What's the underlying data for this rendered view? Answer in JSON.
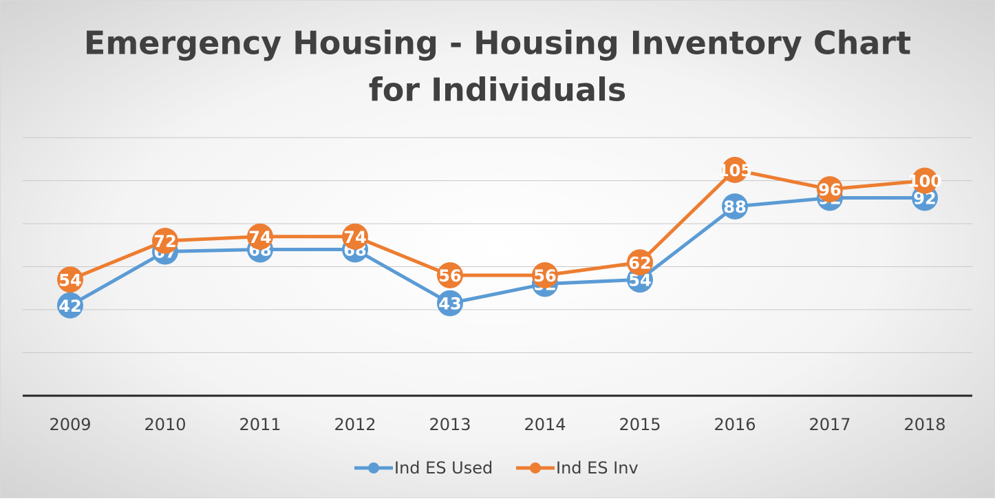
{
  "chart_data": {
    "type": "line",
    "title": "Emergency Housing - Housing Inventory Chart for Individuals",
    "title_lines": [
      "Emergency Housing - Housing Inventory Chart",
      "for Individuals"
    ],
    "categories": [
      "2009",
      "2010",
      "2011",
      "2012",
      "2013",
      "2014",
      "2015",
      "2016",
      "2017",
      "2018"
    ],
    "series": [
      {
        "name": "Ind ES Used",
        "color": "#5b9bd5",
        "values": [
          42,
          67,
          68,
          68,
          43,
          52,
          54,
          88,
          92,
          92
        ]
      },
      {
        "name": "Ind ES Inv",
        "color": "#ed7d31",
        "values": [
          54,
          72,
          74,
          74,
          56,
          56,
          62,
          105,
          96,
          100
        ]
      }
    ],
    "ylim": [
      0,
      120
    ],
    "yticks": [
      0,
      20,
      40,
      60,
      80,
      100,
      120
    ],
    "grid": true,
    "legend": "bottom"
  }
}
